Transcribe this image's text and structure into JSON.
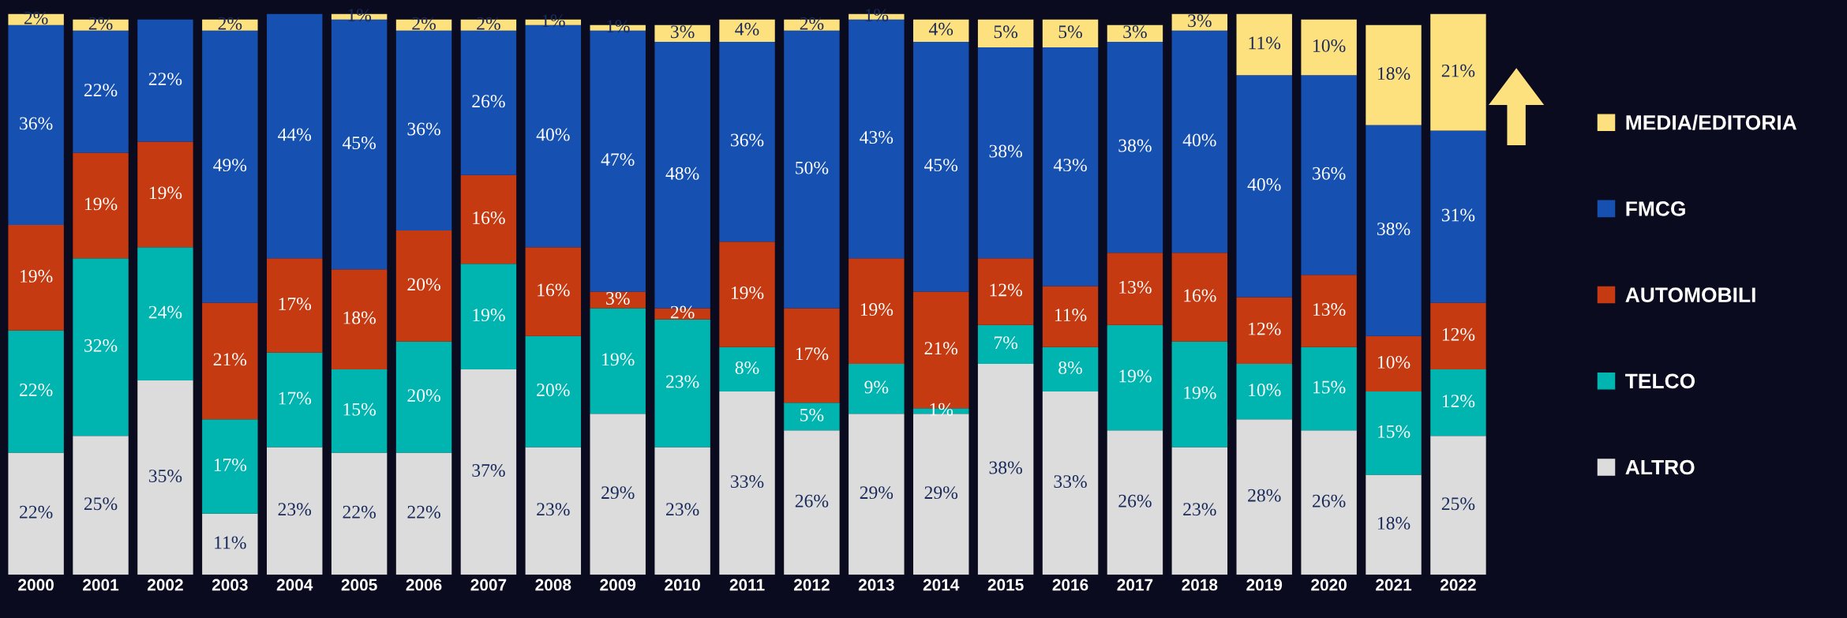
{
  "chart_data": {
    "type": "bar",
    "stacked": true,
    "legend": "right",
    "grid": false,
    "tick_labels": "x",
    "categories": [
      "2000",
      "2001",
      "2002",
      "2003",
      "2004",
      "2005",
      "2006",
      "2007",
      "2008",
      "2009",
      "2010",
      "2011",
      "2012",
      "2013",
      "2014",
      "2015",
      "2016",
      "2017",
      "2018",
      "2019",
      "2020",
      "2021",
      "2022"
    ],
    "series": [
      {
        "name": "ALTRO",
        "color": "#dcdcdc",
        "values": [
          22,
          25,
          35,
          11,
          23,
          22,
          22,
          37,
          23,
          29,
          23,
          33,
          26,
          29,
          29,
          38,
          33,
          26,
          23,
          28,
          26,
          18,
          25
        ],
        "value_labels": [
          "22%",
          "25%",
          "35%",
          "11%",
          "23%",
          "22%",
          "22%",
          "37%",
          "23%",
          "29%",
          "23%",
          "33%",
          "26%",
          "29%",
          "29%",
          "38%",
          "33%",
          "26%",
          "23%",
          "28%",
          "26%",
          "18%",
          "25%"
        ]
      },
      {
        "name": "TELCO",
        "color": "#00b5b0",
        "values": [
          22,
          32,
          24,
          17,
          17,
          15,
          20,
          19,
          20,
          19,
          23,
          8,
          5,
          9,
          1,
          7,
          8,
          19,
          19,
          10,
          15,
          15,
          12
        ],
        "value_labels": [
          "22%",
          "32%",
          "24%",
          "17%",
          "17%",
          "15%",
          "20%",
          "19%",
          "20%",
          "19%",
          "23%",
          "8%",
          "5%",
          "9%",
          "1%",
          "7%",
          "8%",
          "19%",
          "19%",
          "10%",
          "15%",
          "15%",
          "12%"
        ]
      },
      {
        "name": "AUTOMOBILI",
        "color": "#c53a11",
        "values": [
          19,
          19,
          19,
          21,
          17,
          18,
          20,
          16,
          16,
          3,
          2,
          19,
          17,
          19,
          21,
          12,
          11,
          13,
          16,
          12,
          13,
          10,
          12
        ],
        "value_labels": [
          "19%",
          "19%",
          "19%",
          "21%",
          "17%",
          "18%",
          "20%",
          "16%",
          "16%",
          "3%",
          "2%",
          "19%",
          "17%",
          "19%",
          "21%",
          "12%",
          "11%",
          "13%",
          "16%",
          "12%",
          "13%",
          "10%",
          "12%"
        ]
      },
      {
        "name": "FMCG",
        "color": "#1650b0",
        "values": [
          36,
          22,
          22,
          49,
          44,
          45,
          36,
          26,
          40,
          47,
          48,
          36,
          50,
          43,
          45,
          38,
          43,
          38,
          40,
          40,
          36,
          38,
          31
        ],
        "value_labels": [
          "36%",
          "22%",
          "22%",
          "49%",
          "44%",
          "45%",
          "36%",
          "26%",
          "40%",
          "47%",
          "48%",
          "36%",
          "50%",
          "43%",
          "45%",
          "38%",
          "43%",
          "38%",
          "40%",
          "40%",
          "36%",
          "38%",
          "31%"
        ]
      },
      {
        "name": "MEDIA/EDITORIA",
        "color": "#fde17e",
        "values": [
          2,
          2,
          null,
          2,
          null,
          1,
          2,
          2,
          1,
          1,
          3,
          4,
          2,
          1,
          4,
          5,
          5,
          3,
          3,
          11,
          10,
          18,
          21
        ],
        "value_labels": [
          "2%",
          "2%",
          null,
          "2%",
          null,
          "1%",
          "2%",
          "2%",
          "1%",
          "1%",
          "3%",
          "4%",
          "2%",
          "1%",
          "4%",
          "5%",
          "5%",
          "3%",
          "3%",
          "11%",
          "10%",
          "18%",
          "21%"
        ]
      }
    ]
  }
}
